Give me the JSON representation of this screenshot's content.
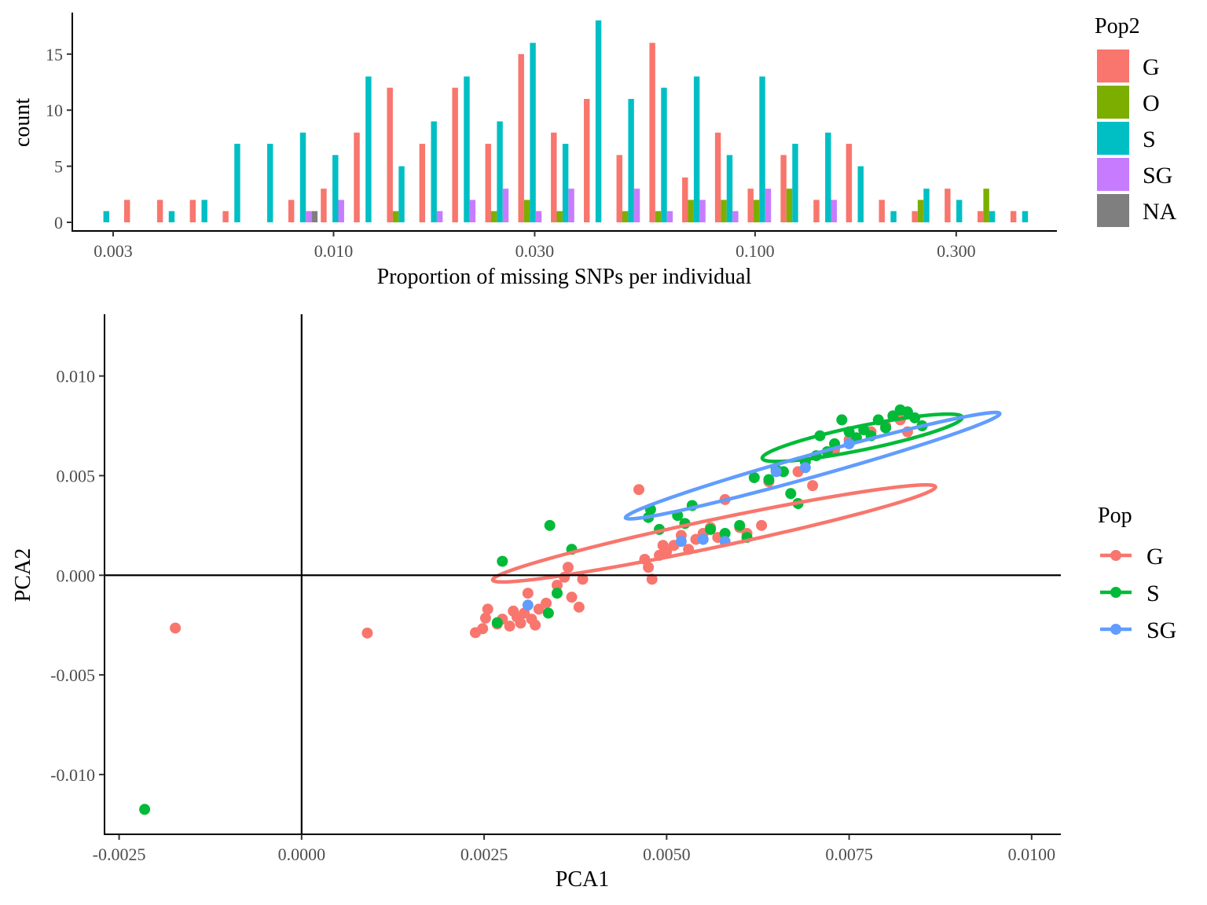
{
  "chart_data": [
    {
      "type": "bar",
      "xlabel": "Proportion of missing SNPs per individual",
      "ylabel": "count",
      "xscale": "log10",
      "xlim": [
        0.0024,
        0.52
      ],
      "ylim": [
        0,
        18.7
      ],
      "x_ticks": [
        0.003,
        0.01,
        0.03,
        0.1,
        0.3
      ],
      "x_tick_labels": [
        "0.003",
        "0.010",
        "0.030",
        "0.100",
        "0.300"
      ],
      "y_ticks": [
        0,
        5,
        10,
        15
      ],
      "y_tick_labels": [
        "0",
        "5",
        "10",
        "15"
      ],
      "grid": false,
      "legend": {
        "title": "Pop2",
        "position": "right",
        "entries": [
          {
            "label": "G",
            "color": "#F8766D"
          },
          {
            "label": "O",
            "color": "#7CAE00"
          },
          {
            "label": "S",
            "color": "#00BFC4"
          },
          {
            "label": "SG",
            "color": "#C77CFF"
          },
          {
            "label": "NA",
            "color": "#7F7F7F"
          }
        ]
      },
      "bin_centers": [
        0.00289,
        0.00345,
        0.00413,
        0.00494,
        0.00591,
        0.00707,
        0.00846,
        0.0101,
        0.0121,
        0.0145,
        0.0173,
        0.0207,
        0.0248,
        0.0297,
        0.0355,
        0.0425,
        0.0508,
        0.0608,
        0.0727,
        0.087,
        0.104,
        0.1245,
        0.149,
        0.178,
        0.213,
        0.255,
        0.305,
        0.365,
        0.437
      ],
      "series": [
        {
          "name": "G",
          "color": "#F8766D",
          "values": [
            0,
            2,
            2,
            2,
            1,
            0,
            2,
            3,
            8,
            12,
            7,
            12,
            7,
            15,
            8,
            11,
            6,
            16,
            4,
            8,
            3,
            6,
            2,
            7,
            2,
            1,
            3,
            1,
            1
          ]
        },
        {
          "name": "O",
          "color": "#7CAE00",
          "values": [
            0,
            0,
            0,
            0,
            0,
            0,
            0,
            0,
            0,
            1,
            0,
            0,
            1,
            2,
            1,
            0,
            1,
            1,
            2,
            2,
            2,
            3,
            0,
            0,
            0,
            2,
            0,
            3,
            0
          ]
        },
        {
          "name": "S",
          "color": "#00BFC4",
          "values": [
            1,
            0,
            1,
            2,
            7,
            7,
            8,
            6,
            13,
            5,
            9,
            13,
            9,
            16,
            7,
            18,
            11,
            12,
            13,
            6,
            13,
            7,
            8,
            5,
            1,
            3,
            2,
            1,
            1
          ]
        },
        {
          "name": "SG",
          "color": "#C77CFF",
          "values": [
            0,
            0,
            0,
            0,
            0,
            0,
            1,
            2,
            0,
            0,
            1,
            2,
            3,
            1,
            3,
            0,
            3,
            1,
            2,
            1,
            3,
            0,
            2,
            0,
            0,
            0,
            0,
            0,
            0
          ]
        },
        {
          "name": "NA",
          "color": "#7F7F7F",
          "values": [
            0,
            0,
            0,
            0,
            0,
            0,
            1,
            0,
            0,
            0,
            0,
            0,
            0,
            0,
            0,
            0,
            0,
            0,
            0,
            0,
            0,
            0,
            0,
            0,
            0,
            0,
            0,
            0,
            0
          ]
        }
      ]
    },
    {
      "type": "scatter",
      "xlabel": "PCA1",
      "ylabel": "PCA2",
      "xlim": [
        -0.0027,
        0.0104
      ],
      "ylim": [
        -0.013,
        0.0131
      ],
      "x_ticks": [
        -0.0025,
        0,
        0.0025,
        0.005,
        0.0075,
        0.01
      ],
      "x_tick_labels": [
        "-0.0025",
        "0.0000",
        "0.0025",
        "0.0050",
        "0.0075",
        "0.0100"
      ],
      "y_ticks": [
        -0.01,
        -0.005,
        0,
        0.005,
        0.01
      ],
      "y_tick_labels": [
        "-0.010",
        "-0.005",
        "0.000",
        "0.005",
        "0.010"
      ],
      "reference_lines": {
        "x": 0,
        "y": 0
      },
      "grid": false,
      "legend": {
        "title": "Pop",
        "position": "right",
        "entries": [
          {
            "label": "G",
            "color": "#F8766D"
          },
          {
            "label": "S",
            "color": "#00BA38"
          },
          {
            "label": "SG",
            "color": "#619CFF"
          }
        ]
      },
      "ellipses": [
        {
          "name": "G",
          "color": "#F8766D",
          "center": [
            0.00565,
            0.0021
          ],
          "semi_major": 0.00385,
          "semi_minor": 0.00056,
          "angle_deg": 38.5
        },
        {
          "name": "S",
          "color": "#00BA38",
          "center": [
            0.00768,
            0.0069
          ],
          "semi_major": 0.00175,
          "semi_minor": 0.00048,
          "angle_deg": 40.3
        },
        {
          "name": "SG",
          "color": "#619CFF",
          "center": [
            0.007,
            0.0055
          ],
          "semi_major": 0.00368,
          "semi_minor": 0.0004,
          "angle_deg": 46.2
        }
      ],
      "series": [
        {
          "name": "G",
          "color": "#F8766D",
          "points": [
            [
              -0.00173,
              -0.00265
            ],
            [
              0.0009,
              -0.0029
            ],
            [
              0.00238,
              -0.00288
            ],
            [
              0.00248,
              -0.00268
            ],
            [
              0.00252,
              -0.00215
            ],
            [
              0.00255,
              -0.0017
            ],
            [
              0.00268,
              -0.00245
            ],
            [
              0.00275,
              -0.0022
            ],
            [
              0.00285,
              -0.00255
            ],
            [
              0.0029,
              -0.0018
            ],
            [
              0.00295,
              -0.0021
            ],
            [
              0.003,
              -0.0024
            ],
            [
              0.00305,
              -0.0019
            ],
            [
              0.0031,
              -0.0009
            ],
            [
              0.00315,
              -0.0022
            ],
            [
              0.0032,
              -0.0025
            ],
            [
              0.00325,
              -0.0017
            ],
            [
              0.00335,
              -0.0014
            ],
            [
              0.0035,
              -0.0005
            ],
            [
              0.0036,
              -0.0001
            ],
            [
              0.00365,
              0.0004
            ],
            [
              0.0037,
              -0.0011
            ],
            [
              0.00385,
              -0.0002
            ],
            [
              0.0038,
              -0.0016
            ],
            [
              0.00462,
              0.0043
            ],
            [
              0.0047,
              0.0008
            ],
            [
              0.00475,
              0.0004
            ],
            [
              0.0048,
              -0.0002
            ],
            [
              0.0049,
              0.001
            ],
            [
              0.00495,
              0.0015
            ],
            [
              0.005,
              0.0012
            ],
            [
              0.0051,
              0.0015
            ],
            [
              0.0052,
              0.002
            ],
            [
              0.0053,
              0.0013
            ],
            [
              0.0054,
              0.0018
            ],
            [
              0.0055,
              0.0021
            ],
            [
              0.0056,
              0.0024
            ],
            [
              0.0057,
              0.0019
            ],
            [
              0.0058,
              0.0038
            ],
            [
              0.006,
              0.0024
            ],
            [
              0.0061,
              0.0021
            ],
            [
              0.0063,
              0.0025
            ],
            [
              0.0064,
              0.0047
            ],
            [
              0.0068,
              0.0052
            ],
            [
              0.007,
              0.0045
            ],
            [
              0.0073,
              0.0063
            ],
            [
              0.0075,
              0.0068
            ],
            [
              0.0078,
              0.0072
            ],
            [
              0.008,
              0.0075
            ],
            [
              0.0082,
              0.0078
            ],
            [
              0.0083,
              0.0072
            ]
          ]
        },
        {
          "name": "S",
          "color": "#00BA38",
          "points": [
            [
              -0.00215,
              -0.01175
            ],
            [
              0.00268,
              -0.00238
            ],
            [
              0.00275,
              0.0007
            ],
            [
              0.0034,
              0.0025
            ],
            [
              0.00338,
              -0.0019
            ],
            [
              0.0035,
              -0.0009
            ],
            [
              0.0037,
              0.0013
            ],
            [
              0.00475,
              0.0029
            ],
            [
              0.00478,
              0.0033
            ],
            [
              0.0049,
              0.0023
            ],
            [
              0.00515,
              0.003
            ],
            [
              0.00525,
              0.0026
            ],
            [
              0.00535,
              0.0035
            ],
            [
              0.0056,
              0.0023
            ],
            [
              0.0058,
              0.0021
            ],
            [
              0.006,
              0.0025
            ],
            [
              0.0061,
              0.0019
            ],
            [
              0.0062,
              0.0049
            ],
            [
              0.0064,
              0.0048
            ],
            [
              0.0065,
              0.0053
            ],
            [
              0.0066,
              0.0052
            ],
            [
              0.0067,
              0.0041
            ],
            [
              0.0068,
              0.0036
            ],
            [
              0.0069,
              0.0057
            ],
            [
              0.00705,
              0.006
            ],
            [
              0.0071,
              0.007
            ],
            [
              0.0072,
              0.0062
            ],
            [
              0.0073,
              0.0066
            ],
            [
              0.0074,
              0.0078
            ],
            [
              0.0075,
              0.0072
            ],
            [
              0.0076,
              0.0069
            ],
            [
              0.0077,
              0.0073
            ],
            [
              0.0078,
              0.007
            ],
            [
              0.0079,
              0.0078
            ],
            [
              0.008,
              0.0074
            ],
            [
              0.0081,
              0.008
            ],
            [
              0.0082,
              0.0083
            ],
            [
              0.0083,
              0.0082
            ],
            [
              0.0084,
              0.0079
            ],
            [
              0.0085,
              0.0075
            ]
          ]
        },
        {
          "name": "SG",
          "color": "#619CFF",
          "points": [
            [
              0.0031,
              -0.0015
            ],
            [
              0.0052,
              0.0017
            ],
            [
              0.0055,
              0.0018
            ],
            [
              0.0058,
              0.0017
            ],
            [
              0.0065,
              0.0052
            ],
            [
              0.0069,
              0.0054
            ],
            [
              0.0075,
              0.0066
            ]
          ]
        }
      ]
    }
  ]
}
